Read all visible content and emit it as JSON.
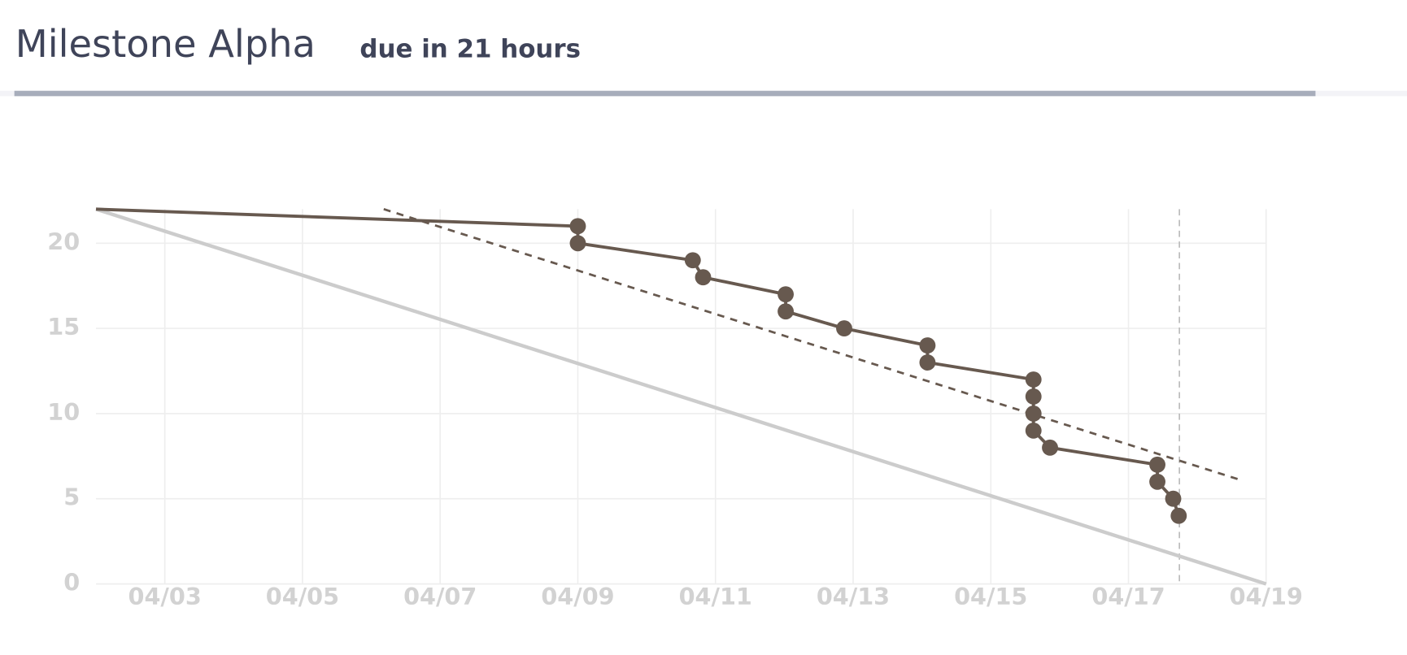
{
  "chart_data": {
    "type": "line",
    "title": "Milestone Alpha",
    "subtitle": "due in 21 hours",
    "xlim": [
      2,
      19
    ],
    "ylim": [
      0,
      22
    ],
    "xticks": [
      {
        "value": 3,
        "label": "04/03"
      },
      {
        "value": 5,
        "label": "04/05"
      },
      {
        "value": 7,
        "label": "04/07"
      },
      {
        "value": 9,
        "label": "04/09"
      },
      {
        "value": 11,
        "label": "04/11"
      },
      {
        "value": 13,
        "label": "04/13"
      },
      {
        "value": 15,
        "label": "04/15"
      },
      {
        "value": 17,
        "label": "04/17"
      },
      {
        "value": 19,
        "label": "04/19"
      }
    ],
    "yticks": [
      0,
      5,
      10,
      15,
      20
    ],
    "grid": true,
    "now": 17.74,
    "series": [
      {
        "color": "#cccccc",
        "dash": false,
        "markers": false,
        "x": [
          2,
          19
        ],
        "values": [
          22,
          0
        ]
      },
      {
        "color": "#67594f",
        "dash": true,
        "markers": false,
        "x": [
          6.18,
          18.63
        ],
        "values": [
          22,
          6.1
        ]
      },
      {
        "color": "#67594f",
        "dash": false,
        "markers": true,
        "x": [
          2,
          9.0,
          9.0,
          10.67,
          10.82,
          12.02,
          12.02,
          12.87,
          14.08,
          14.08,
          15.62,
          15.62,
          15.62,
          15.62,
          15.86,
          17.42,
          17.42,
          17.65,
          17.73
        ],
        "values": [
          22,
          21,
          20,
          19,
          18,
          17,
          16,
          15,
          14,
          13,
          12,
          11,
          10,
          9,
          8,
          7,
          6,
          5,
          4
        ]
      }
    ]
  }
}
